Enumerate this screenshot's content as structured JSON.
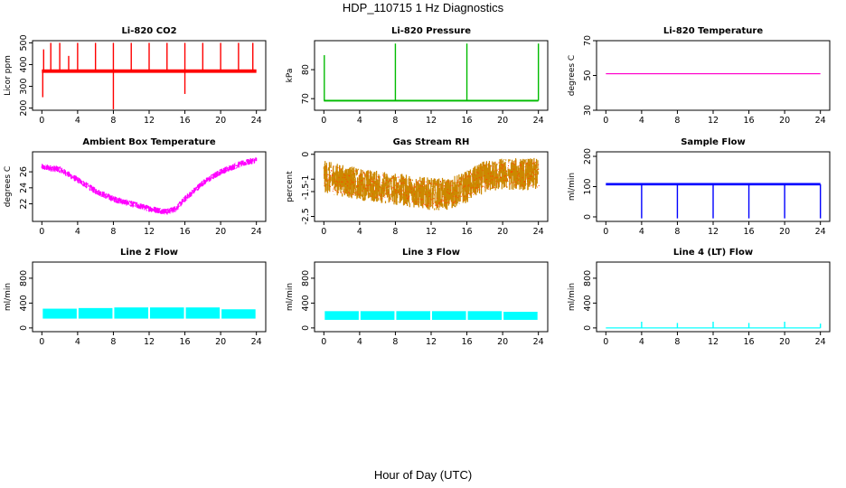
{
  "page": {
    "title": "HDP_110715  1 Hz Diagnostics",
    "xlabel": "Hour of Day (UTC)"
  },
  "chart_data": [
    {
      "type": "line",
      "title": "Li-820 CO2",
      "ylabel": "Licor ppm",
      "color": "#ff0000",
      "xlim": [
        0,
        24
      ],
      "ylim": [
        190,
        510
      ],
      "xticks": [
        0,
        4,
        8,
        12,
        16,
        20,
        24
      ],
      "yticks": [
        200,
        300,
        400,
        500
      ],
      "band": {
        "center": 370,
        "noise": 8
      },
      "spikes": [
        {
          "x": 0.1,
          "y": 250
        },
        {
          "x": 0.2,
          "y": 470
        },
        {
          "x": 1.0,
          "y": 500
        },
        {
          "x": 2.0,
          "y": 500
        },
        {
          "x": 3.0,
          "y": 440
        },
        {
          "x": 4.0,
          "y": 500
        },
        {
          "x": 6.0,
          "y": 500
        },
        {
          "x": 8.0,
          "y": 190
        },
        {
          "x": 8.0,
          "y": 500
        },
        {
          "x": 10.0,
          "y": 500
        },
        {
          "x": 12.0,
          "y": 500
        },
        {
          "x": 14.0,
          "y": 500
        },
        {
          "x": 16.0,
          "y": 265
        },
        {
          "x": 16.0,
          "y": 500
        },
        {
          "x": 18.0,
          "y": 500
        },
        {
          "x": 20.0,
          "y": 500
        },
        {
          "x": 22.0,
          "y": 500
        },
        {
          "x": 23.6,
          "y": 500
        }
      ]
    },
    {
      "type": "line",
      "title": "Li-820 Pressure",
      "ylabel": "kPa",
      "color": "#00bb00",
      "xlim": [
        0,
        24
      ],
      "ylim": [
        66,
        90
      ],
      "xticks": [
        0,
        4,
        8,
        12,
        16,
        20,
        24
      ],
      "yticks": [
        70,
        80
      ],
      "band": {
        "center": 69.3,
        "noise": 0.3
      },
      "spikes": [
        {
          "x": 0.05,
          "y": 85
        },
        {
          "x": 8.0,
          "y": 89
        },
        {
          "x": 16.0,
          "y": 89
        },
        {
          "x": 24.0,
          "y": 89
        }
      ]
    },
    {
      "type": "line",
      "title": "Li-820 Temperature",
      "ylabel": "degrees C",
      "color": "#ff00cc",
      "xlim": [
        0,
        24
      ],
      "ylim": [
        30,
        70
      ],
      "xticks": [
        0,
        4,
        8,
        12,
        16,
        20,
        24
      ],
      "yticks": [
        30,
        50,
        70
      ],
      "band": {
        "center": 51,
        "noise": 0
      },
      "spikes": []
    },
    {
      "type": "line",
      "title": "Ambient Box Temperature",
      "ylabel": "degrees C",
      "color": "#ff00ff",
      "xlim": [
        0,
        24
      ],
      "ylim": [
        19.8,
        28.5
      ],
      "xticks": [
        0,
        4,
        8,
        12,
        16,
        20,
        24
      ],
      "yticks": [
        22,
        24,
        26
      ],
      "curve": [
        [
          0,
          26.6
        ],
        [
          2,
          26.3
        ],
        [
          4,
          25.0
        ],
        [
          6,
          23.6
        ],
        [
          8,
          22.6
        ],
        [
          10,
          22.0
        ],
        [
          12,
          21.4
        ],
        [
          14,
          21.0
        ],
        [
          15,
          21.4
        ],
        [
          16,
          22.6
        ],
        [
          18,
          24.6
        ],
        [
          20,
          26.0
        ],
        [
          22,
          26.9
        ],
        [
          24,
          27.5
        ]
      ],
      "noise": 0.4,
      "spikes": []
    },
    {
      "type": "line",
      "title": "Gas Stream RH",
      "ylabel": "percent",
      "color": "#cc8800",
      "xlim": [
        0,
        24
      ],
      "ylim": [
        -2.7,
        0.1
      ],
      "xticks": [
        0,
        4,
        8,
        12,
        16,
        20,
        24
      ],
      "yticks": [
        -2.5,
        -1.5,
        -1.0,
        0.0
      ],
      "curve": [
        [
          0,
          -0.9
        ],
        [
          4,
          -1.2
        ],
        [
          8,
          -1.4
        ],
        [
          12,
          -1.6
        ],
        [
          14,
          -1.6
        ],
        [
          16,
          -1.3
        ],
        [
          18,
          -0.9
        ],
        [
          20,
          -0.8
        ],
        [
          24,
          -0.8
        ]
      ],
      "noise": 0.65,
      "spikes": []
    },
    {
      "type": "line",
      "title": "Sample Flow",
      "ylabel": "ml/min",
      "color": "#0000ff",
      "xlim": [
        0,
        24
      ],
      "ylim": [
        -15,
        215
      ],
      "xticks": [
        0,
        4,
        8,
        12,
        16,
        20,
        24
      ],
      "yticks": [
        0,
        100,
        200
      ],
      "band": {
        "center": 108,
        "noise": 4
      },
      "spikes": [
        {
          "x": 4.0,
          "y": -5
        },
        {
          "x": 8.0,
          "y": -5
        },
        {
          "x": 12.0,
          "y": -5
        },
        {
          "x": 16.0,
          "y": -5
        },
        {
          "x": 20.0,
          "y": -5
        },
        {
          "x": 24.0,
          "y": -5
        }
      ]
    },
    {
      "type": "line",
      "title": "Line 2 Flow",
      "ylabel": "ml/min",
      "color": "#00ffff",
      "xlim": [
        0,
        24
      ],
      "ylim": [
        -60,
        1060
      ],
      "xticks": [
        0,
        4,
        8,
        12,
        16,
        20,
        24
      ],
      "yticks": [
        0,
        400,
        800
      ],
      "segments": [
        [
          0,
          4,
          150,
          310
        ],
        [
          4,
          8,
          150,
          320
        ],
        [
          8,
          12,
          150,
          330
        ],
        [
          12,
          16,
          150,
          330
        ],
        [
          16,
          20,
          150,
          330
        ],
        [
          20,
          24,
          150,
          300
        ]
      ],
      "spikes": []
    },
    {
      "type": "line",
      "title": "Line 3 Flow",
      "ylabel": "ml/min",
      "color": "#00ffff",
      "xlim": [
        0,
        24
      ],
      "ylim": [
        -60,
        1060
      ],
      "xticks": [
        0,
        4,
        8,
        12,
        16,
        20,
        24
      ],
      "yticks": [
        0,
        400,
        800
      ],
      "segments": [
        [
          0,
          4,
          130,
          270
        ],
        [
          4,
          8,
          130,
          270
        ],
        [
          8,
          12,
          130,
          270
        ],
        [
          12,
          16,
          130,
          270
        ],
        [
          16,
          20,
          130,
          270
        ],
        [
          20,
          24,
          130,
          260
        ]
      ],
      "spikes": []
    },
    {
      "type": "line",
      "title": "Line 4 (LT) Flow",
      "ylabel": "ml/min",
      "color": "#00ffff",
      "xlim": [
        0,
        24
      ],
      "ylim": [
        -60,
        1060
      ],
      "xticks": [
        0,
        4,
        8,
        12,
        16,
        20,
        24
      ],
      "yticks": [
        0,
        400,
        800
      ],
      "band": {
        "center": 0,
        "noise": 0
      },
      "spikes": [
        {
          "x": 4.0,
          "y": 100
        },
        {
          "x": 8.0,
          "y": 80
        },
        {
          "x": 12.0,
          "y": 100
        },
        {
          "x": 16.0,
          "y": 80
        },
        {
          "x": 20.0,
          "y": 100
        },
        {
          "x": 24.0,
          "y": 70
        }
      ]
    }
  ]
}
